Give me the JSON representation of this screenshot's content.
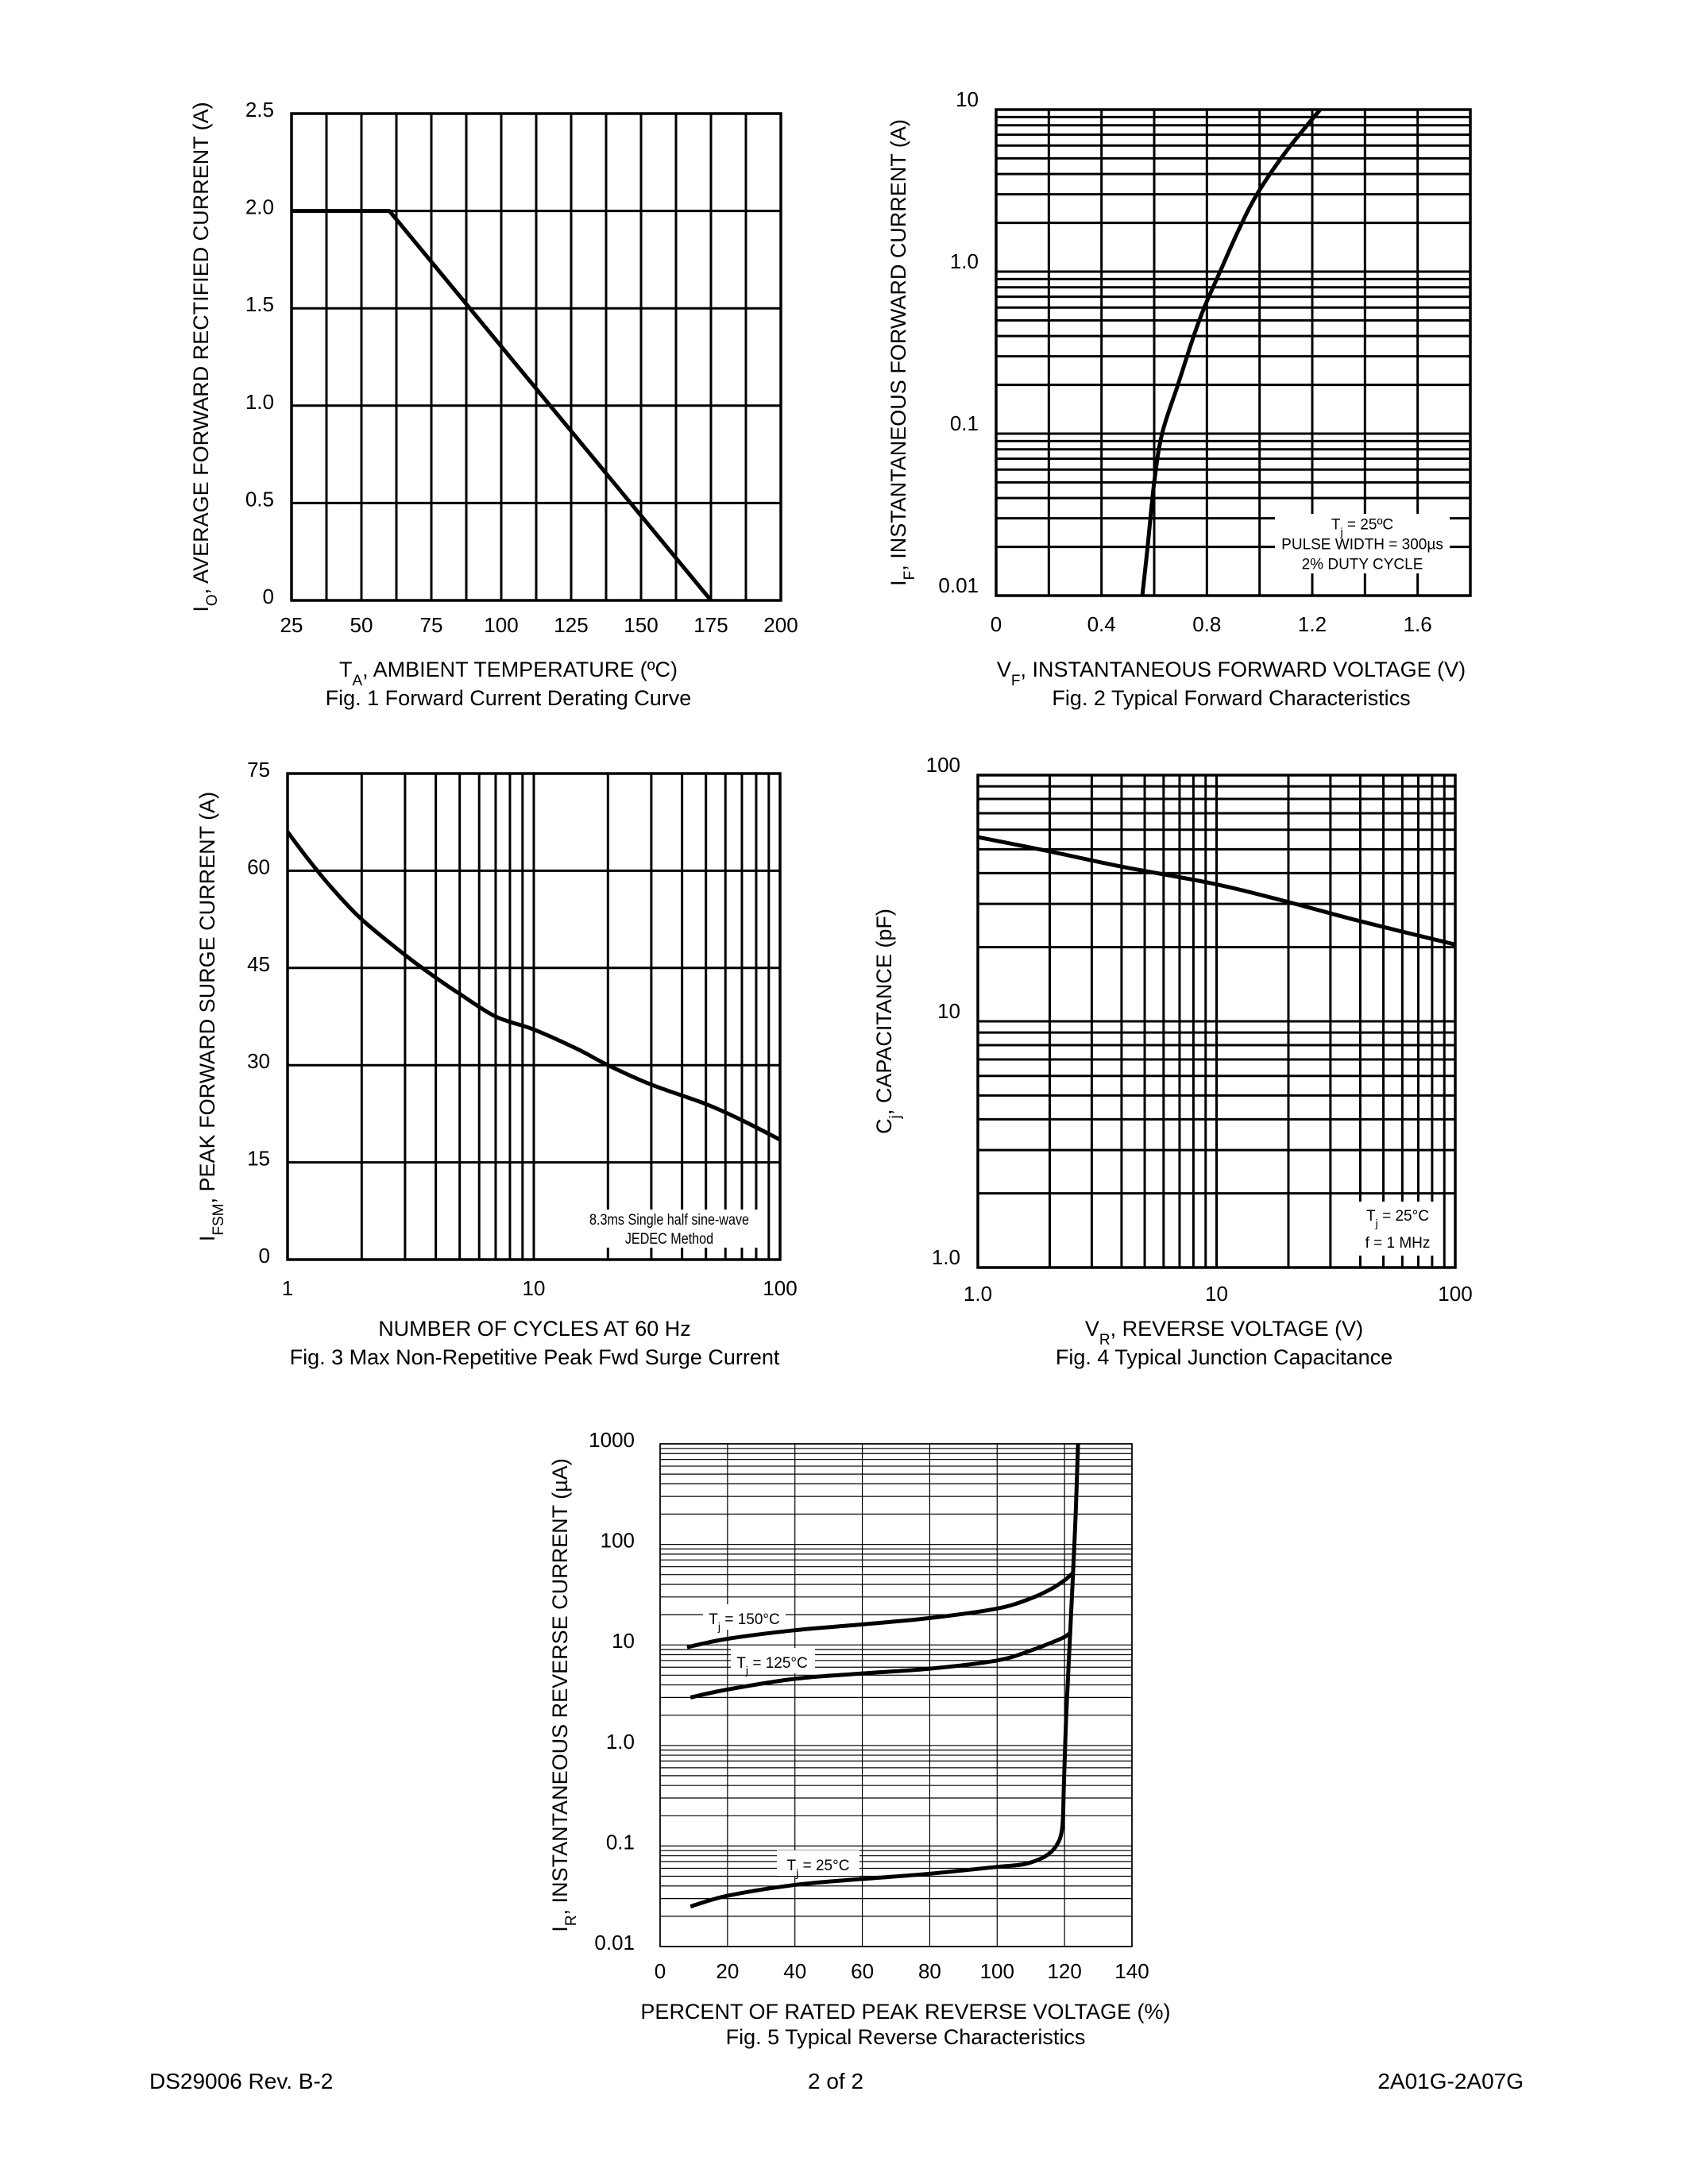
{
  "footer": {
    "left": "DS29006 Rev. B-2",
    "center": "2 of 2",
    "right": "2A01G-2A07G"
  },
  "chart_data": [
    {
      "type": "line",
      "caption": "Fig. 1  Forward Current Derating Curve",
      "xlabel": {
        "main": "T",
        "sub": "A",
        "rest": ", AMBIENT TEMPERATURE (ºC)"
      },
      "ylabel": {
        "main": "I",
        "sub": "O",
        "rest": ", AVERAGE FORWARD RECTIFIED CURRENT (A)"
      },
      "xscale": "linear",
      "yscale": "linear",
      "xlim": [
        25,
        200
      ],
      "ylim": [
        0,
        2.5
      ],
      "xticks": [
        "25",
        "50",
        "75",
        "100",
        "125",
        "150",
        "175",
        "200"
      ],
      "yticks": [
        "0",
        "0.5",
        "1.0",
        "1.5",
        "2.0",
        "2.5"
      ],
      "grid": true,
      "series": [
        {
          "x": [
            25,
            60,
            175
          ],
          "y": [
            2.0,
            2.0,
            0
          ]
        }
      ]
    },
    {
      "type": "line",
      "caption": "Fig. 2  Typical Forward Characteristics",
      "xlabel": {
        "main": "V",
        "sub": "F",
        "rest": ", INSTANTANEOUS FORWARD VOLTAGE (V)"
      },
      "ylabel": {
        "main": "I",
        "sub": "F",
        "rest": ", INSTANTANEOUS FORWARD CURRENT (A)"
      },
      "xscale": "linear",
      "yscale": "log",
      "xlim": [
        0,
        1.8
      ],
      "ylim": [
        0.01,
        10
      ],
      "xticks": [
        "0",
        "0.4",
        "0.8",
        "1.2",
        "1.6"
      ],
      "yticks": [
        "0.01",
        "0.1",
        "1.0",
        "10"
      ],
      "grid": true,
      "note": [
        "T_j = 25ºC",
        "PULSE WIDTH = 300µs",
        "2% DUTY CYCLE"
      ],
      "series": [
        {
          "x": [
            0.555,
            0.575,
            0.6,
            0.63,
            0.69,
            0.75,
            0.79,
            0.85,
            0.92,
            0.99,
            1.1,
            1.23
          ],
          "y": [
            0.01,
            0.02,
            0.05,
            0.1,
            0.2,
            0.4,
            0.6,
            1.0,
            1.8,
            3.0,
            5.5,
            10
          ]
        }
      ]
    },
    {
      "type": "line",
      "caption": "Fig. 3  Max Non-Repetitive Peak Fwd Surge Current",
      "xlabel": {
        "main": "NUMBER OF CYCLES AT 60 Hz",
        "sub": "",
        "rest": ""
      },
      "ylabel": {
        "main": "I",
        "sub": "FSM",
        "rest": ", PEAK FORWARD SURGE CURRENT (A)"
      },
      "xscale": "log",
      "yscale": "linear",
      "xlim": [
        1,
        100
      ],
      "ylim": [
        0,
        75
      ],
      "xticks": [
        "1",
        "10",
        "100"
      ],
      "yticks": [
        "0",
        "15",
        "30",
        "45",
        "60",
        "75"
      ],
      "grid": true,
      "note": [
        "8.3ms Single half sine-wave",
        "JEDEC Method"
      ],
      "series": [
        {
          "x": [
            1,
            1.2,
            1.5,
            2,
            3,
            4,
            5,
            7,
            10,
            15,
            20,
            30,
            50,
            70,
            100
          ],
          "y": [
            66,
            62,
            57.5,
            52.5,
            47,
            43.5,
            41,
            37.5,
            35.5,
            32.5,
            30,
            27,
            24,
            21.5,
            18.5
          ]
        }
      ]
    },
    {
      "type": "line",
      "caption": "Fig. 4  Typical Junction Capacitance",
      "xlabel": {
        "main": "V",
        "sub": "R",
        "rest": ", REVERSE VOLTAGE (V)"
      },
      "ylabel": {
        "main": "C",
        "sub": "j",
        "rest": ", CAPACITANCE (pF)"
      },
      "xscale": "log",
      "yscale": "log",
      "xlim": [
        1,
        100
      ],
      "ylim": [
        1,
        100
      ],
      "xticks": [
        "1.0",
        "10",
        "100"
      ],
      "yticks": [
        "1.0",
        "10",
        "100"
      ],
      "grid": true,
      "note": [
        "T_j = 25°C",
        "f = 1 MHz"
      ],
      "series": [
        {
          "x": [
            1,
            2,
            4,
            10,
            20,
            40,
            100
          ],
          "y": [
            56,
            49,
            42.5,
            36,
            30.5,
            25.5,
            20.5
          ]
        }
      ]
    },
    {
      "type": "line",
      "caption": "Fig. 5  Typical Reverse Characteristics",
      "xlabel": {
        "main": "PERCENT OF RATED PEAK REVERSE VOLTAGE (%)",
        "sub": "",
        "rest": ""
      },
      "ylabel": {
        "main": "I",
        "sub": "R",
        "rest": ", INSTANTANEOUS REVERSE CURRENT (µA)"
      },
      "xscale": "linear",
      "yscale": "log",
      "xlim": [
        0,
        140
      ],
      "ylim": [
        0.01,
        1000
      ],
      "xticks": [
        "0",
        "20",
        "40",
        "60",
        "80",
        "100",
        "120",
        "140"
      ],
      "yticks": [
        "0.01",
        "0.1",
        "1.0",
        "10",
        "100",
        "1000"
      ],
      "grid": true,
      "series": [
        {
          "name": "T_j = 150°C",
          "x": [
            8,
            20,
            40,
            60,
            80,
            100,
            110,
            116,
            120,
            122.5
          ],
          "y": [
            9.5,
            11.5,
            14,
            16,
            18.5,
            23,
            29,
            36,
            44,
            52
          ]
        },
        {
          "name": "T_j = 125°C",
          "x": [
            9,
            20,
            40,
            60,
            80,
            100,
            110,
            116,
            120,
            122
          ],
          "y": [
            3,
            3.6,
            4.6,
            5.2,
            5.8,
            7,
            8.8,
            10.5,
            12,
            13.5
          ]
        },
        {
          "name": "T_j = 25°C",
          "x": [
            9,
            20,
            40,
            60,
            80,
            100,
            108,
            114,
            117.5,
            119.3,
            119.8,
            120.5,
            121.5,
            122.5,
            123.3,
            124
          ],
          "y": [
            0.025,
            0.032,
            0.041,
            0.047,
            0.053,
            0.062,
            0.066,
            0.078,
            0.1,
            0.15,
            0.4,
            2,
            10,
            50,
            200,
            1000
          ]
        }
      ]
    }
  ]
}
